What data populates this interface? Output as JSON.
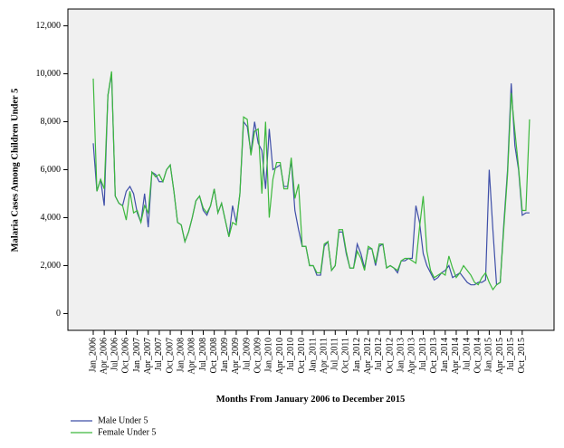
{
  "chart_data": {
    "type": "line",
    "y_label": "Malaria Cases Among Children Under 5",
    "x_label": "Months From January 2006 to December 2015",
    "categories": [
      "Jan_2006",
      null,
      null,
      "Apr_2006",
      null,
      null,
      "Jul_2006",
      null,
      null,
      "Oct_2006",
      null,
      null,
      "Jan_2007",
      null,
      null,
      "Apr_2007",
      null,
      null,
      "Jul_2007",
      null,
      null,
      "Oct_2007",
      null,
      null,
      "Jan_2008",
      null,
      null,
      "Apr_2008",
      null,
      null,
      "Jul_2008",
      null,
      null,
      "Oct_2008",
      null,
      null,
      "Jan_2009",
      null,
      null,
      "Apr_2009",
      null,
      null,
      "Jul_2009",
      null,
      null,
      "Oct_2009",
      null,
      null,
      "Jan_2010",
      null,
      null,
      "Apr_2010",
      null,
      null,
      "Jul_2010",
      null,
      null,
      "Oct_2010",
      null,
      null,
      "Jan_2011",
      null,
      null,
      "Apr_2011",
      null,
      null,
      "Jul_2011",
      null,
      null,
      "Oct_2011",
      null,
      null,
      "Jan_2012",
      null,
      null,
      "Apr_2012",
      null,
      null,
      "Jul_2012",
      null,
      null,
      "Oct_2012",
      null,
      null,
      "Jan_2013",
      null,
      null,
      "Apr_2013",
      null,
      null,
      "Jul_2013",
      null,
      null,
      "Oct_2013",
      null,
      null,
      "Jan_2014",
      null,
      null,
      "Apr_2014",
      null,
      null,
      "Jul_2014",
      null,
      null,
      "Oct_2014",
      null,
      null,
      "Jan_2015",
      null,
      null,
      "Apr_2015",
      null,
      null,
      "Jul_2015",
      null,
      null,
      "Oct_2015",
      null,
      null
    ],
    "series": [
      {
        "name": "Male Under 5",
        "color": "#3f4fa8",
        "values": [
          7100,
          5100,
          5600,
          4500,
          9100,
          10000,
          4900,
          4600,
          4500,
          5100,
          5300,
          5000,
          4200,
          3800,
          5000,
          3600,
          5900,
          5800,
          5500,
          5500,
          6000,
          6200,
          5100,
          3800,
          3700,
          3000,
          3400,
          4000,
          4700,
          4900,
          4300,
          4100,
          4500,
          5200,
          4200,
          4600,
          3900,
          3200,
          4500,
          3800,
          5000,
          8000,
          7800,
          6700,
          8000,
          7100,
          6800,
          5200,
          7700,
          6000,
          6100,
          6200,
          5300,
          5300,
          6400,
          4300,
          3500,
          2800,
          2800,
          2000,
          2000,
          1600,
          1600,
          2800,
          3000,
          1800,
          2000,
          3400,
          3400,
          2500,
          1900,
          1900,
          2900,
          2500,
          1900,
          2700,
          2700,
          2000,
          2800,
          2900,
          1900,
          2000,
          1900,
          1700,
          2200,
          2200,
          2300,
          2300,
          4500,
          3800,
          2500,
          2000,
          1700,
          1400,
          1500,
          1700,
          1800,
          2000,
          1500,
          1600,
          1700,
          1500,
          1300,
          1200,
          1200,
          1300,
          1300,
          1400,
          6000,
          3500,
          1200,
          1300,
          3800,
          6000,
          9600,
          7000,
          6000,
          4100,
          4200,
          4200
        ]
      },
      {
        "name": "Female Under 5",
        "color": "#3cb83c",
        "values": [
          9800,
          5100,
          5600,
          5200,
          9100,
          10100,
          4900,
          4600,
          4500,
          3900,
          5100,
          4200,
          4300,
          3800,
          4500,
          4200,
          5900,
          5700,
          5800,
          5500,
          6000,
          6200,
          5100,
          3800,
          3700,
          3000,
          3400,
          4000,
          4700,
          4900,
          4400,
          4200,
          4500,
          5200,
          4200,
          4600,
          3900,
          3200,
          3800,
          3700,
          5000,
          8200,
          8100,
          6600,
          7600,
          7700,
          5000,
          8000,
          4000,
          5600,
          6300,
          6300,
          5200,
          5200,
          6500,
          4800,
          5400,
          2800,
          2800,
          2000,
          2000,
          1700,
          1700,
          2900,
          3000,
          1800,
          2000,
          3500,
          3500,
          2600,
          1900,
          1900,
          2600,
          2300,
          1800,
          2800,
          2700,
          2100,
          2900,
          2900,
          1900,
          2000,
          1900,
          1800,
          2200,
          2300,
          2300,
          2200,
          2100,
          3600,
          4900,
          2600,
          1800,
          1500,
          1600,
          1700,
          1600,
          2400,
          1900,
          1500,
          1700,
          2000,
          1800,
          1600,
          1300,
          1200,
          1500,
          1700,
          1300,
          1000,
          1200,
          1300,
          3600,
          5800,
          9200,
          7600,
          6100,
          4300,
          4300,
          8100
        ]
      }
    ],
    "ylim": [
      -700,
      12700
    ],
    "yticks": [
      0,
      {
        "value": 2000,
        "label": "2,000"
      },
      {
        "value": 4000,
        "label": "4,000"
      },
      {
        "value": 6000,
        "label": "6,000"
      },
      {
        "value": 8000,
        "label": "8,000"
      },
      {
        "value": 10000,
        "label": "10,000"
      },
      {
        "value": 12000,
        "label": "12,000"
      }
    ],
    "grid": false,
    "legend": "bottom-left",
    "background": "#f0f0f0"
  }
}
